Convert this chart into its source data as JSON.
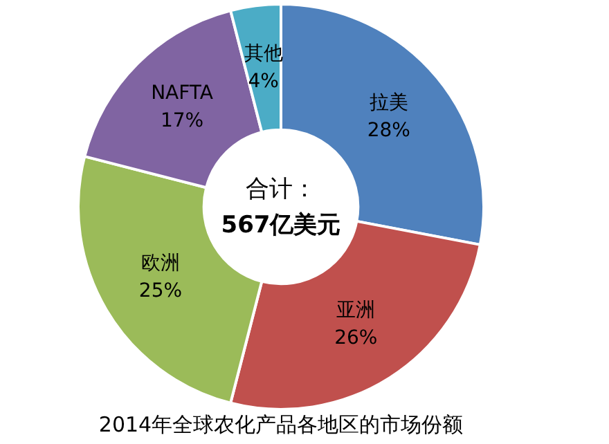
{
  "chart_data": {
    "type": "donut",
    "title": "2014年全球农化产品各地区的市场份额",
    "categories": [
      "拉美",
      "亚洲",
      "欧洲",
      "NAFTA",
      "其他"
    ],
    "values": [
      28,
      26,
      25,
      17,
      4
    ],
    "colors": [
      "#4f81bd",
      "#c0504d",
      "#9bbb59",
      "#8064a2",
      "#4bacc6"
    ],
    "value_labels": [
      "28%",
      "26%",
      "25%",
      "17%",
      "4%"
    ],
    "annotations": [
      "合计：",
      "567亿美元"
    ],
    "legend": false
  }
}
